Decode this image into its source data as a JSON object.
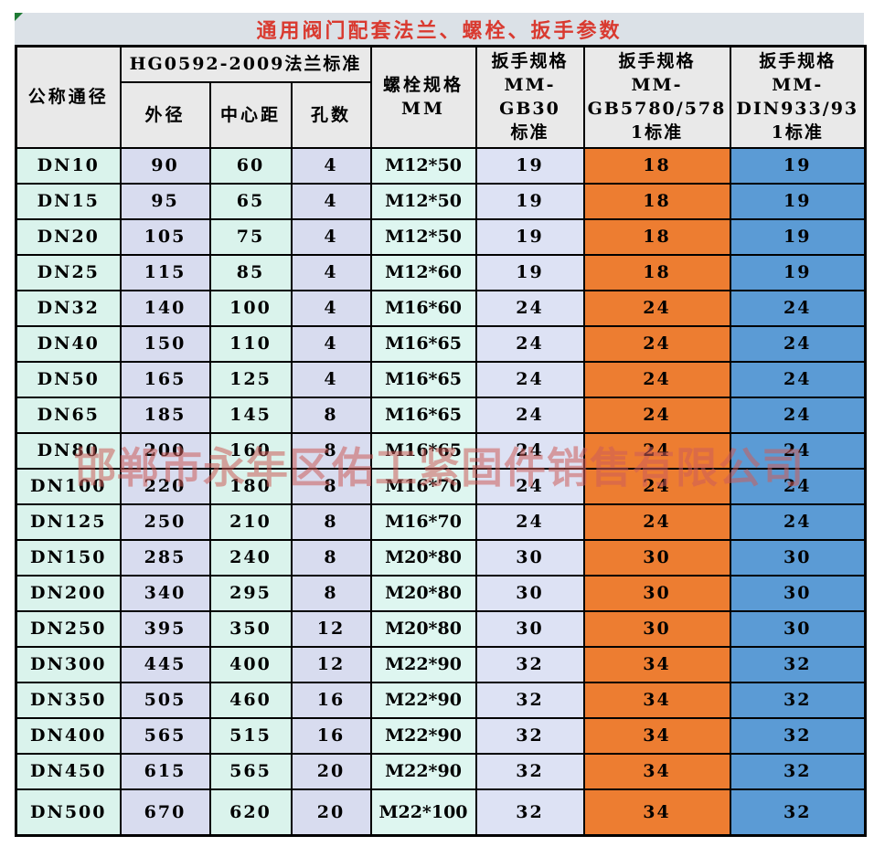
{
  "title": "通用阀门配套法兰、螺栓、扳手参数",
  "watermark": "邯郸市永年区佑工紧固件销售有限公司",
  "table": {
    "headers": {
      "dn": "公称通径",
      "flange_group": "HG0592-2009法兰标准",
      "od": "外径",
      "cd": "中心距",
      "holes": "孔数",
      "bolt": "螺栓规格\nMM",
      "gb30": "扳手规格\nMM-GB30\n标准",
      "gb5780": "扳手规格\nMM-\nGB5780/578\n1标准",
      "din": "扳手规格\nMM-\nDIN933/93\n1标准"
    }
  },
  "colors": {
    "title_text": "#d93a30",
    "title_bar_bg": "#dbe1e7",
    "header_bg": "#e9e9e9",
    "dn_col_bg": "#daf3ec",
    "od_col_bg": "#d8dcef",
    "bolt_col_bg": "#def6f0",
    "gb30_col_bg": "#dde2f4",
    "gb5780_col_bg": "#ed7d31",
    "din_col_bg": "#5b9bd5",
    "border": "#000000",
    "watermark": "#cc5c5a",
    "corner_marker_green": "#1e7a34"
  },
  "chart_data": {
    "type": "table",
    "title": "通用阀门配套法兰、螺栓、扳手参数",
    "column_group_header": {
      "label": "HG0592-2009法兰标准",
      "spans": [
        "外径",
        "中心距",
        "孔数"
      ]
    },
    "columns": [
      "公称通径",
      "外径",
      "中心距",
      "孔数",
      "螺栓规格MM",
      "扳手规格MM-GB30标准",
      "扳手规格MM-GB5780/5781标准",
      "扳手规格MM-DIN933/931标准"
    ],
    "rows": [
      [
        "DN10",
        90,
        60,
        4,
        "M12*50",
        19,
        18,
        19
      ],
      [
        "DN15",
        95,
        65,
        4,
        "M12*50",
        19,
        18,
        19
      ],
      [
        "DN20",
        105,
        75,
        4,
        "M12*50",
        19,
        18,
        19
      ],
      [
        "DN25",
        115,
        85,
        4,
        "M12*60",
        19,
        18,
        19
      ],
      [
        "DN32",
        140,
        100,
        4,
        "M16*60",
        24,
        24,
        24
      ],
      [
        "DN40",
        150,
        110,
        4,
        "M16*65",
        24,
        24,
        24
      ],
      [
        "DN50",
        165,
        125,
        4,
        "M16*65",
        24,
        24,
        24
      ],
      [
        "DN65",
        185,
        145,
        8,
        "M16*65",
        24,
        24,
        24
      ],
      [
        "DN80",
        200,
        160,
        8,
        "M16*65",
        24,
        24,
        24
      ],
      [
        "DN100",
        220,
        180,
        8,
        "M16*70",
        24,
        24,
        24
      ],
      [
        "DN125",
        250,
        210,
        8,
        "M16*70",
        24,
        24,
        24
      ],
      [
        "DN150",
        285,
        240,
        8,
        "M20*80",
        30,
        30,
        30
      ],
      [
        "DN200",
        340,
        295,
        8,
        "M20*80",
        30,
        30,
        30
      ],
      [
        "DN250",
        395,
        350,
        12,
        "M20*80",
        30,
        30,
        30
      ],
      [
        "DN300",
        445,
        400,
        12,
        "M22*90",
        32,
        34,
        32
      ],
      [
        "DN350",
        505,
        460,
        16,
        "M22*90",
        32,
        34,
        32
      ],
      [
        "DN400",
        565,
        515,
        16,
        "M22*90",
        32,
        34,
        32
      ],
      [
        "DN450",
        615,
        565,
        20,
        "M22*90",
        32,
        34,
        32
      ],
      [
        "DN500",
        670,
        620,
        20,
        "M22*100",
        32,
        34,
        32
      ]
    ]
  }
}
